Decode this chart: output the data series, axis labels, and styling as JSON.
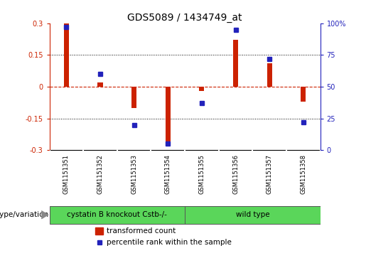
{
  "title": "GDS5089 / 1434749_at",
  "samples": [
    "GSM1151351",
    "GSM1151352",
    "GSM1151353",
    "GSM1151354",
    "GSM1151355",
    "GSM1151356",
    "GSM1151357",
    "GSM1151358"
  ],
  "bar_values": [
    0.3,
    0.02,
    -0.1,
    -0.26,
    -0.02,
    0.22,
    0.11,
    -0.07
  ],
  "percentile_values": [
    97,
    60,
    20,
    5,
    37,
    95,
    72,
    22
  ],
  "bar_color": "#cc2200",
  "dot_color": "#2222bb",
  "ylim_left": [
    -0.3,
    0.3
  ],
  "yticks_left": [
    -0.3,
    -0.15,
    0.0,
    0.15,
    0.3
  ],
  "ytick_labels_left": [
    "-0.3",
    "-0.15",
    "0",
    "0.15",
    "0.3"
  ],
  "yticks_right": [
    0,
    25,
    50,
    75,
    100
  ],
  "ytick_labels_right": [
    "0",
    "25",
    "50",
    "75",
    "100%"
  ],
  "hline_vals": [
    -0.15,
    0.0,
    0.15
  ],
  "group1_label": "cystatin B knockout Cstb-/-",
  "group2_label": "wild type",
  "group1_count": 4,
  "group2_count": 4,
  "group_color": "#5ad65a",
  "row_label": "genotype/variation",
  "legend1": "transformed count",
  "legend2": "percentile rank within the sample",
  "bg_plot": "#ffffff",
  "bg_xtick": "#c8c8c8",
  "title_fontsize": 10,
  "tick_fontsize": 7,
  "label_fontsize": 7.5,
  "bar_width": 0.15
}
